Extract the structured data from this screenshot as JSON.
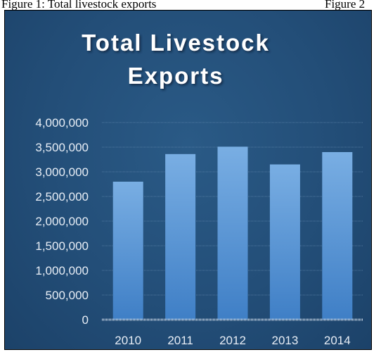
{
  "captions": {
    "left": "Figure 1: Total livestock exports",
    "right": "Figure 2"
  },
  "colors": {
    "background": "#234e78",
    "bar_top": "#79aee3",
    "bar_bottom": "#3f7fc6",
    "text": "#ffffff"
  },
  "chart_data": {
    "type": "bar",
    "title": "Total Livestock Exports",
    "title_lines": [
      "Total Livestock",
      "Exports"
    ],
    "xlabel": "",
    "ylabel": "",
    "categories": [
      "2010",
      "2011",
      "2012",
      "2013",
      "2014"
    ],
    "values": [
      2800000,
      3360000,
      3510000,
      3150000,
      3400000
    ],
    "ylim": [
      0,
      4000000
    ],
    "y_ticks": [
      0,
      500000,
      1000000,
      1500000,
      2000000,
      2500000,
      3000000,
      3500000,
      4000000
    ],
    "y_tick_labels": [
      "0",
      "500,000",
      "1,000,000",
      "1,500,000",
      "2,000,000",
      "2,500,000",
      "3,000,000",
      "3,500,000",
      "4,000,000"
    ],
    "grid": true,
    "legend": "none"
  }
}
